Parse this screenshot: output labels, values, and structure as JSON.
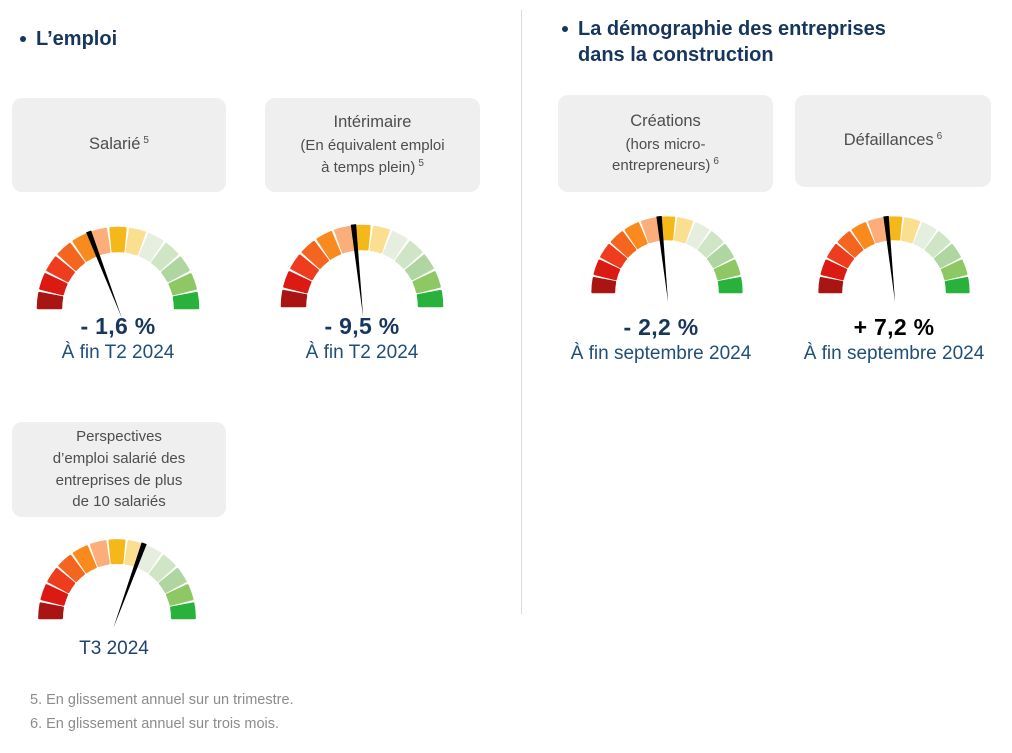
{
  "colors": {
    "title_navy": "#17365D",
    "value_navy": "#17365D",
    "date_navy": "#1F4E79",
    "card_bg": "#EFEFEF",
    "card_text": "#4D4D4D",
    "footnote_gray": "#8C8C8C",
    "divider_gray": "#DCDCDC",
    "needle_black": "#000000"
  },
  "sections": {
    "left": {
      "title": "L’emploi"
    },
    "right": {
      "title_line1": "La démographie des entreprises",
      "title_line2": "dans la construction"
    }
  },
  "footnotes": [
    "5. En glissement annuel sur un trimestre.",
    "6. En glissement annuel sur trois mois."
  ],
  "gauge_segment_colors": [
    "#A91513",
    "#DB1A13",
    "#EE3C1F",
    "#F4661F",
    "#F98A1E",
    "#FBAE79",
    "#F5B81B",
    "#FADF90",
    "#E6EFDF",
    "#D0E5C5",
    "#AFD6A0",
    "#8EC865",
    "#28B23C"
  ],
  "chart_data": [
    {
      "type": "gauge",
      "name": "salarie",
      "card_lines": [
        {
          "text": "Salarié",
          "sup": "5"
        }
      ],
      "value": "- 1,6 %",
      "value_color": "#17365D",
      "period": "À fin T2 2024",
      "arc_span_deg": 180,
      "segments": 13,
      "needle_angle_deg": 111,
      "needle_note": "180 = far left (red end), 0 = far right (green end)"
    },
    {
      "type": "gauge",
      "name": "interimaire",
      "card_lines": [
        {
          "text": "Intérimaire"
        },
        {
          "text": "(En équivalent emploi"
        },
        {
          "text": "à temps plein)",
          "sup": "5"
        }
      ],
      "value": "- 9,5 %",
      "value_color": "#17365D",
      "period": "À fin T2 2024",
      "arc_span_deg": 180,
      "segments": 13,
      "needle_angle_deg": 96
    },
    {
      "type": "gauge",
      "name": "creations",
      "card_lines": [
        {
          "text": "Créations"
        },
        {
          "text": "(hors micro-"
        },
        {
          "text": "entrepreneurs)",
          "sup": "6"
        }
      ],
      "value": "- 2,2 %",
      "value_color": "#17365D",
      "period": "À fin septembre 2024",
      "arc_span_deg": 180,
      "segments": 13,
      "needle_angle_deg": 96
    },
    {
      "type": "gauge",
      "name": "defaillances",
      "card_lines": [
        {
          "text": "Défaillances",
          "sup": "6"
        }
      ],
      "value": "+ 7,2 %",
      "value_color": "#000000",
      "period": "À fin septembre 2024",
      "arc_span_deg": 180,
      "segments": 13,
      "needle_angle_deg": 96
    },
    {
      "type": "gauge",
      "name": "perspectives",
      "card_lines": [
        {
          "text": "Perspectives"
        },
        {
          "text": "d’emploi salarié des"
        },
        {
          "text": "entreprises de plus"
        },
        {
          "text": "de 10 salariés"
        }
      ],
      "value": "",
      "period": "T3 2024",
      "arc_span_deg": 180,
      "segments": 13,
      "needle_angle_deg": 70
    }
  ]
}
